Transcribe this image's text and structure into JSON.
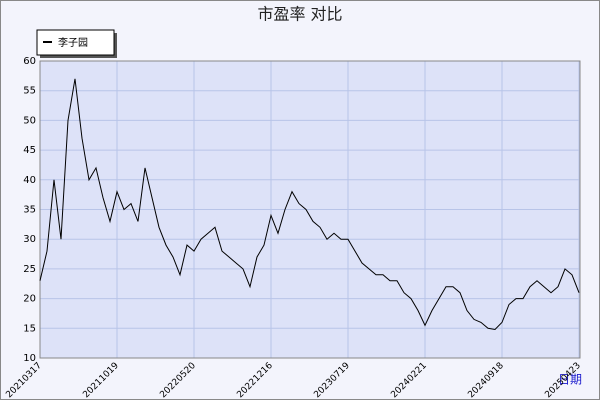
{
  "chart_data": {
    "type": "line",
    "title": "市盈率  对比",
    "x_label": "日期",
    "categories": [
      "20210317",
      null,
      null,
      null,
      null,
      null,
      null,
      null,
      null,
      null,
      null,
      "20211019",
      null,
      null,
      null,
      null,
      null,
      null,
      null,
      null,
      null,
      null,
      "20220520",
      null,
      null,
      null,
      null,
      null,
      null,
      null,
      null,
      null,
      null,
      "20221216",
      null,
      null,
      null,
      null,
      null,
      null,
      null,
      null,
      null,
      null,
      "20230719",
      null,
      null,
      null,
      null,
      null,
      null,
      null,
      null,
      null,
      null,
      "20240221",
      null,
      null,
      null,
      null,
      null,
      null,
      null,
      null,
      null,
      null,
      "20240918",
      null,
      null,
      null,
      null,
      null,
      null,
      null,
      null,
      null,
      null,
      "20250423"
    ],
    "series": [
      {
        "name": "李子园",
        "color": "#000000",
        "values": [
          23,
          28,
          40,
          30,
          50,
          57,
          47,
          40,
          42,
          37,
          33,
          38,
          35,
          36,
          33,
          42,
          37,
          32,
          29,
          27,
          24,
          29,
          28,
          30,
          31,
          32,
          28,
          27,
          26,
          25,
          22,
          27,
          29,
          34,
          31,
          35,
          38,
          36,
          35,
          33,
          32,
          30,
          31,
          30,
          30,
          28,
          26,
          25,
          24,
          24,
          23,
          23,
          21,
          20,
          18,
          15.5,
          18,
          20,
          22,
          22,
          21,
          18,
          16.5,
          16,
          15,
          14.8,
          16,
          19,
          20,
          20,
          22,
          23,
          22,
          21,
          22,
          25,
          24,
          21
        ]
      }
    ],
    "ylim": [
      10,
      60
    ],
    "yticks": [
      10,
      15,
      20,
      25,
      30,
      35,
      40,
      45,
      50,
      55,
      60
    ],
    "grid": true,
    "legend": "top-left"
  }
}
